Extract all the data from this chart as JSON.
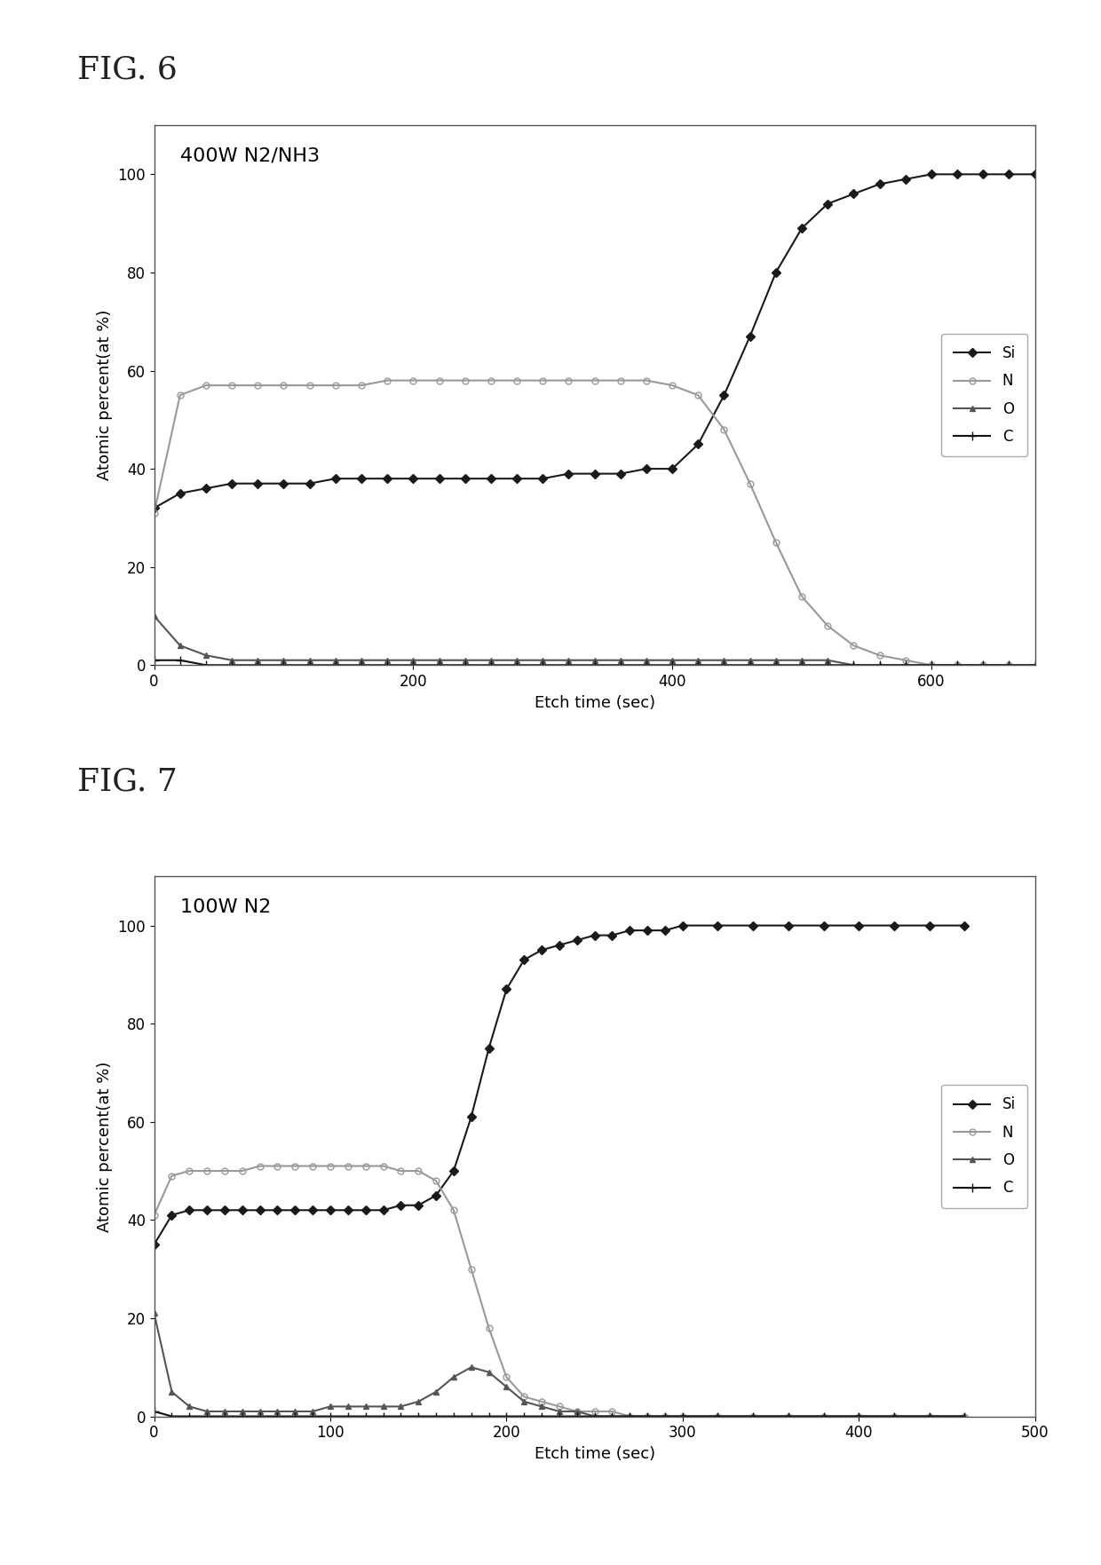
{
  "fig6": {
    "title_label": "FIG. 6",
    "plot_label": "400W N2/NH3",
    "xlabel": "Etch time (sec)",
    "ylabel": "Atomic percent(at %)",
    "xlim": [
      0,
      680
    ],
    "ylim": [
      0,
      110
    ],
    "xticks": [
      0,
      200,
      400,
      600
    ],
    "yticks": [
      0,
      20,
      40,
      60,
      80,
      100
    ],
    "Si_x": [
      0,
      20,
      40,
      60,
      80,
      100,
      120,
      140,
      160,
      180,
      200,
      220,
      240,
      260,
      280,
      300,
      320,
      340,
      360,
      380,
      400,
      420,
      440,
      460,
      480,
      500,
      520,
      540,
      560,
      580,
      600,
      620,
      640,
      660,
      680
    ],
    "Si_y": [
      32,
      35,
      36,
      37,
      37,
      37,
      37,
      38,
      38,
      38,
      38,
      38,
      38,
      38,
      38,
      38,
      39,
      39,
      39,
      40,
      40,
      45,
      55,
      67,
      80,
      89,
      94,
      96,
      98,
      99,
      100,
      100,
      100,
      100,
      100
    ],
    "N_x": [
      0,
      20,
      40,
      60,
      80,
      100,
      120,
      140,
      160,
      180,
      200,
      220,
      240,
      260,
      280,
      300,
      320,
      340,
      360,
      380,
      400,
      420,
      440,
      460,
      480,
      500,
      520,
      540,
      560,
      580,
      600,
      620,
      640,
      660
    ],
    "N_y": [
      31,
      55,
      57,
      57,
      57,
      57,
      57,
      57,
      57,
      58,
      58,
      58,
      58,
      58,
      58,
      58,
      58,
      58,
      58,
      58,
      57,
      55,
      48,
      37,
      25,
      14,
      8,
      4,
      2,
      1,
      0,
      0,
      0,
      0
    ],
    "O_x": [
      0,
      20,
      40,
      60,
      80,
      100,
      120,
      140,
      160,
      180,
      200,
      220,
      240,
      260,
      280,
      300,
      320,
      340,
      360,
      380,
      400,
      420,
      440,
      460,
      480,
      500,
      520,
      540,
      560,
      580,
      600,
      620,
      640,
      660,
      680
    ],
    "O_y": [
      10,
      4,
      2,
      1,
      1,
      1,
      1,
      1,
      1,
      1,
      1,
      1,
      1,
      1,
      1,
      1,
      1,
      1,
      1,
      1,
      1,
      1,
      1,
      1,
      1,
      1,
      1,
      0,
      0,
      0,
      0,
      0,
      0,
      0,
      0
    ],
    "C_x": [
      0,
      20,
      40,
      60,
      80,
      100,
      120,
      140,
      160,
      180,
      200,
      220,
      240,
      260,
      280,
      300,
      320,
      340,
      360,
      380,
      400,
      420,
      440,
      460,
      480,
      500,
      520,
      540,
      560,
      580,
      600,
      620,
      640,
      660,
      680
    ],
    "C_y": [
      1,
      1,
      0,
      0,
      0,
      0,
      0,
      0,
      0,
      0,
      0,
      0,
      0,
      0,
      0,
      0,
      0,
      0,
      0,
      0,
      0,
      0,
      0,
      0,
      0,
      0,
      0,
      0,
      0,
      0,
      0,
      0,
      0,
      0,
      0
    ]
  },
  "fig7": {
    "title_label": "FIG. 7",
    "plot_label": "100W N2",
    "xlabel": "Etch time (sec)",
    "ylabel": "Atomic percent(at %)",
    "xlim": [
      0,
      480
    ],
    "ylim": [
      0,
      110
    ],
    "xticks": [
      0,
      100,
      200,
      300,
      400,
      500
    ],
    "yticks": [
      0,
      20,
      40,
      60,
      80,
      100
    ],
    "Si_x": [
      0,
      10,
      20,
      30,
      40,
      50,
      60,
      70,
      80,
      90,
      100,
      110,
      120,
      130,
      140,
      150,
      160,
      170,
      180,
      190,
      200,
      210,
      220,
      230,
      240,
      250,
      260,
      270,
      280,
      290,
      300,
      320,
      340,
      360,
      380,
      400,
      420,
      440,
      460
    ],
    "Si_y": [
      35,
      41,
      42,
      42,
      42,
      42,
      42,
      42,
      42,
      42,
      42,
      42,
      42,
      42,
      43,
      43,
      45,
      50,
      61,
      75,
      87,
      93,
      95,
      96,
      97,
      98,
      98,
      99,
      99,
      99,
      100,
      100,
      100,
      100,
      100,
      100,
      100,
      100,
      100
    ],
    "N_x": [
      0,
      10,
      20,
      30,
      40,
      50,
      60,
      70,
      80,
      90,
      100,
      110,
      120,
      130,
      140,
      150,
      160,
      170,
      180,
      190,
      200,
      210,
      220,
      230,
      240,
      250,
      260,
      270,
      280,
      290,
      300,
      320,
      340,
      360,
      380,
      400,
      420,
      440,
      460
    ],
    "N_y": [
      41,
      49,
      50,
      50,
      50,
      50,
      51,
      51,
      51,
      51,
      51,
      51,
      51,
      51,
      50,
      50,
      48,
      42,
      30,
      18,
      8,
      4,
      3,
      2,
      1,
      1,
      1,
      0,
      0,
      0,
      0,
      0,
      0,
      0,
      0,
      0,
      0,
      0,
      0
    ],
    "O_x": [
      0,
      10,
      20,
      30,
      40,
      50,
      60,
      70,
      80,
      90,
      100,
      110,
      120,
      130,
      140,
      150,
      160,
      170,
      180,
      190,
      200,
      210,
      220,
      230,
      240,
      250,
      260,
      270,
      280,
      290,
      300,
      320,
      340,
      360,
      380,
      400,
      420,
      440,
      460
    ],
    "O_y": [
      21,
      5,
      2,
      1,
      1,
      1,
      1,
      1,
      1,
      1,
      2,
      2,
      2,
      2,
      2,
      3,
      5,
      8,
      10,
      9,
      6,
      3,
      2,
      1,
      1,
      0,
      0,
      0,
      0,
      0,
      0,
      0,
      0,
      0,
      0,
      0,
      0,
      0,
      0
    ],
    "C_x": [
      0,
      10,
      20,
      30,
      40,
      50,
      60,
      70,
      80,
      90,
      100,
      110,
      120,
      130,
      140,
      150,
      160,
      170,
      180,
      190,
      200,
      210,
      220,
      230,
      240,
      250,
      260,
      270,
      280,
      290,
      300,
      320,
      340,
      360,
      380,
      400,
      420,
      440,
      460
    ],
    "C_y": [
      1,
      0,
      0,
      0,
      0,
      0,
      0,
      0,
      0,
      0,
      0,
      0,
      0,
      0,
      0,
      0,
      0,
      0,
      0,
      0,
      0,
      0,
      0,
      0,
      0,
      0,
      0,
      0,
      0,
      0,
      0,
      0,
      0,
      0,
      0,
      0,
      0,
      0,
      0
    ]
  },
  "Si_color": "#1a1a1a",
  "N_color": "#999999",
  "O_color": "#555555",
  "C_color": "#111111",
  "bg_color": "#ffffff",
  "fig_bg": "#ffffff",
  "marker_Si": "D",
  "marker_N": "o",
  "marker_O": "^",
  "marker_C": "+",
  "linewidth": 1.5,
  "markersize": 5,
  "title_fontsize": 26,
  "label_fontsize": 13,
  "tick_fontsize": 12,
  "legend_fontsize": 12,
  "annotation_fontsize": 16
}
